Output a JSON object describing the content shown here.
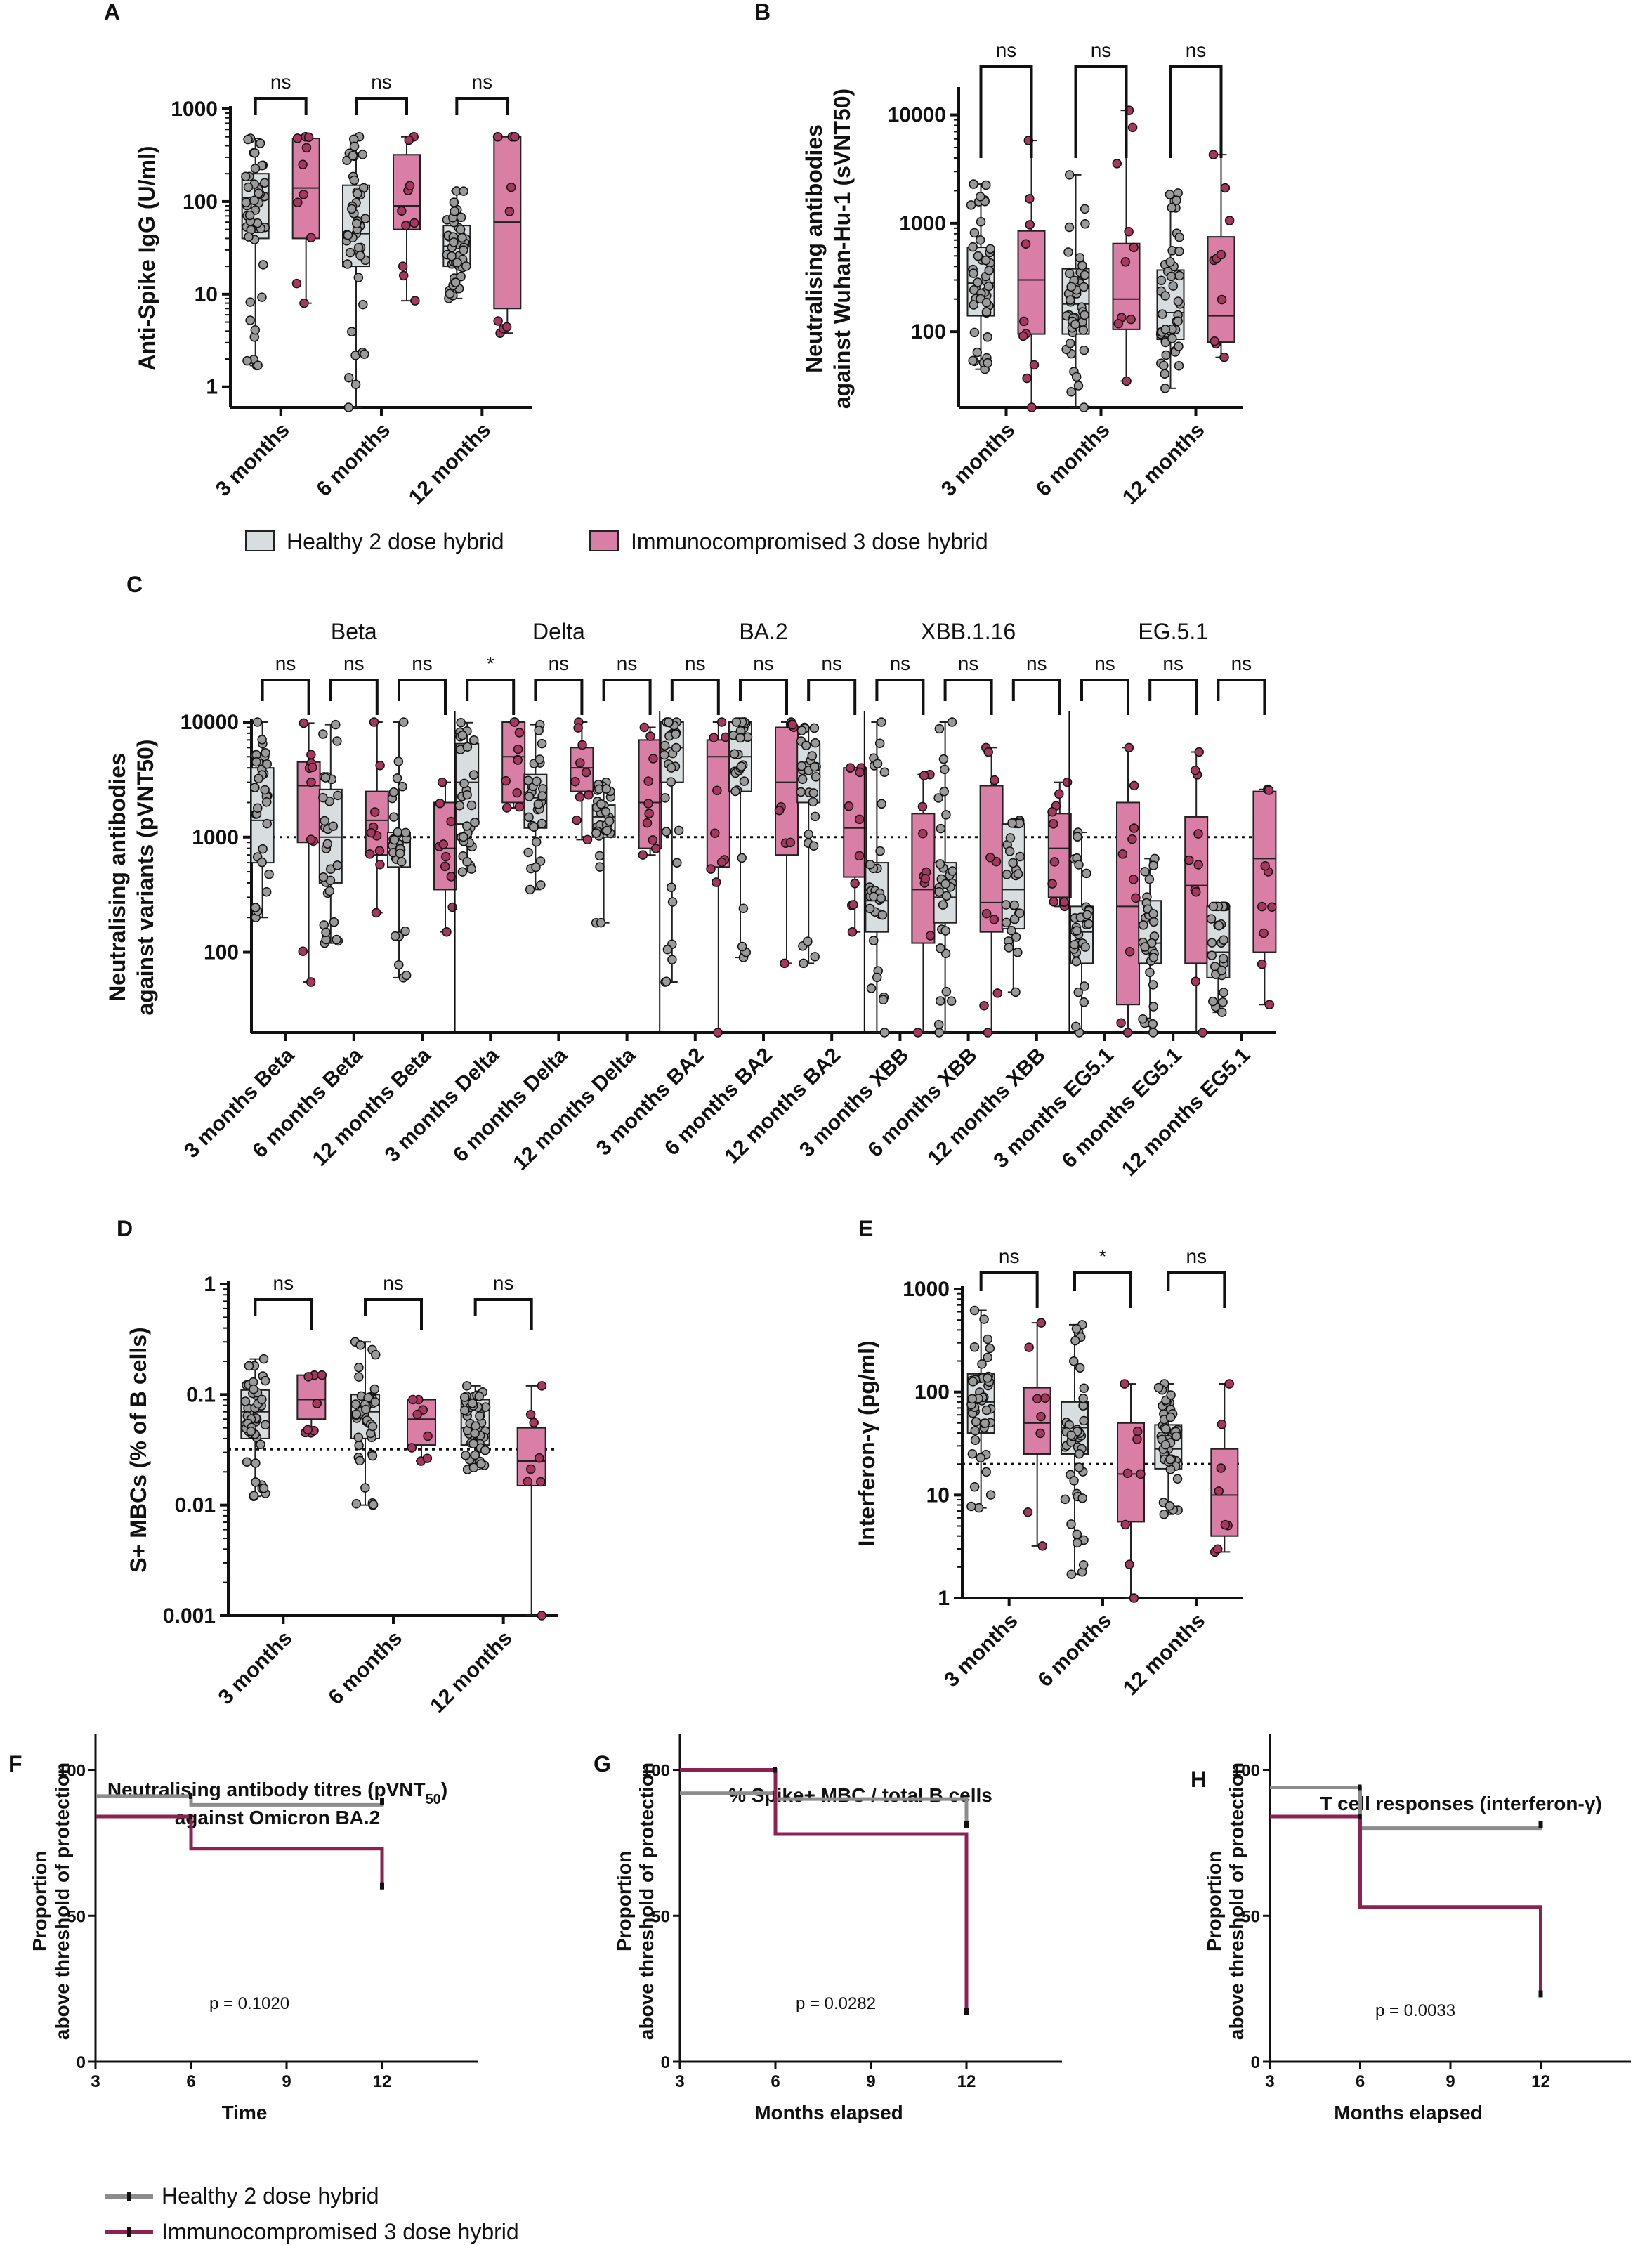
{
  "colors": {
    "healthy": "#d8dde0",
    "immuno": "#d97ea4",
    "healthy_dot": "#9a9a9a",
    "immuno_dot": "#a83760",
    "km_healthy": "#8c8c8c",
    "km_immuno": "#8b2252"
  },
  "legend_top": {
    "healthy": "Healthy 2 dose hybrid",
    "immuno": "Immunocompromised 3 dose hybrid"
  },
  "legend_bottom": {
    "healthy": "Healthy 2 dose hybrid",
    "immuno": "Immunocompromised 3 dose hybrid"
  },
  "chart_data": [
    {
      "panel": "A",
      "type": "box",
      "scale": "log",
      "ylabel": "Anti-Spike IgG (U/ml)",
      "yticks": [
        1,
        10,
        100,
        1000
      ],
      "yticklabels": [
        "1",
        "10",
        "100",
        "1000"
      ],
      "ylim": [
        0.6,
        1000
      ],
      "categories": [
        "3 months",
        "6 months",
        "12 months"
      ],
      "significance": [
        "ns",
        "ns",
        "ns"
      ],
      "series": [
        {
          "name": "Healthy 2 dose hybrid",
          "boxes": [
            {
              "min": 1.7,
              "q1": 40,
              "median": 110,
              "q3": 200,
              "max": 480
            },
            {
              "min": 0.6,
              "q1": 20,
              "median": 45,
              "q3": 150,
              "max": 500
            },
            {
              "min": 9,
              "q1": 20,
              "median": 33,
              "q3": 55,
              "max": 130
            }
          ]
        },
        {
          "name": "Immunocompromised 3 dose hybrid",
          "boxes": [
            {
              "min": 8,
              "q1": 40,
              "median": 140,
              "q3": 480,
              "max": 500
            },
            {
              "min": 8.5,
              "q1": 50,
              "median": 90,
              "q3": 320,
              "max": 500
            },
            {
              "min": 3.8,
              "q1": 7,
              "median": 60,
              "q3": 500,
              "max": 500
            }
          ]
        }
      ]
    },
    {
      "panel": "B",
      "type": "box",
      "scale": "log",
      "ylabel": [
        "Neutralising antibodies",
        "against Wuhan-Hu-1 (sVNT50)"
      ],
      "yticks": [
        100,
        1000,
        10000
      ],
      "yticklabels": [
        "100",
        "1000",
        "10000"
      ],
      "ylim": [
        20,
        17000
      ],
      "categories": [
        "3 months",
        "6 months",
        "12 months"
      ],
      "significance": [
        "ns",
        "ns",
        "ns"
      ],
      "series": [
        {
          "name": "Healthy 2 dose hybrid",
          "boxes": [
            {
              "min": 45,
              "q1": 140,
              "median": 280,
              "q3": 600,
              "max": 2300
            },
            {
              "min": 20,
              "q1": 95,
              "median": 180,
              "q3": 380,
              "max": 2800
            },
            {
              "min": 30,
              "q1": 85,
              "median": 150,
              "q3": 370,
              "max": 1900
            }
          ]
        },
        {
          "name": "Immunocompromised 3 dose hybrid",
          "boxes": [
            {
              "min": 20,
              "q1": 95,
              "median": 300,
              "q3": 850,
              "max": 5800
            },
            {
              "min": 35,
              "q1": 105,
              "median": 200,
              "q3": 650,
              "max": 11000
            },
            {
              "min": 58,
              "q1": 80,
              "median": 140,
              "q3": 750,
              "max": 4300
            }
          ]
        }
      ]
    },
    {
      "panel": "C",
      "type": "box",
      "scale": "log",
      "ylabel": [
        "Neutralising antibodies",
        "against variants (pVNT50)"
      ],
      "yticks": [
        100,
        1000,
        10000
      ],
      "yticklabels": [
        "100",
        "1000",
        "10000"
      ],
      "ylim": [
        20,
        10000
      ],
      "threshold": 1000,
      "variant_groups": [
        "Beta",
        "Delta",
        "BA.2",
        "XBB.1.16",
        "EG.5.1"
      ],
      "categories": [
        "3 months Beta",
        "6 months Beta",
        "12 months Beta",
        "3 months Delta",
        "6 months Delta",
        "12 months Delta",
        "3 months BA2",
        "6 months BA2",
        "12 months BA2",
        "3 months XBB",
        "6 months XBB",
        "12 months XBB",
        "3 months EG5.1",
        "6 months EG5.1",
        "12 months EG5.1"
      ],
      "significance": [
        "ns",
        "ns",
        "ns",
        "*",
        "ns",
        "ns",
        "ns",
        "ns",
        "ns",
        "ns",
        "ns",
        "ns",
        "ns",
        "ns",
        "ns"
      ],
      "series": [
        {
          "name": "Healthy 2 dose hybrid",
          "boxes": [
            {
              "min": 200,
              "q1": 600,
              "median": 1400,
              "q3": 4000,
              "max": 10000
            },
            {
              "min": 120,
              "q1": 400,
              "median": 1000,
              "q3": 2600,
              "max": 9500
            },
            {
              "min": 60,
              "q1": 550,
              "median": 900,
              "q3": 1100,
              "max": 10000
            },
            {
              "min": 500,
              "q1": 1300,
              "median": 3000,
              "q3": 6500,
              "max": 9900
            },
            {
              "min": 350,
              "q1": 1200,
              "median": 2200,
              "q3": 3500,
              "max": 9500
            },
            {
              "min": 180,
              "q1": 1000,
              "median": 1500,
              "q3": 1900,
              "max": 3000
            },
            {
              "min": 55,
              "q1": 3000,
              "median": 6000,
              "q3": 10000,
              "max": 10000
            },
            {
              "min": 90,
              "q1": 2500,
              "median": 5000,
              "q3": 10000,
              "max": 10000
            },
            {
              "min": 80,
              "q1": 2000,
              "median": 4000,
              "q3": 6500,
              "max": 9000
            },
            {
              "min": 20,
              "q1": 150,
              "median": 280,
              "q3": 600,
              "max": 10000
            },
            {
              "min": 20,
              "q1": 180,
              "median": 300,
              "q3": 600,
              "max": 10000
            },
            {
              "min": 45,
              "q1": 160,
              "median": 350,
              "q3": 1300,
              "max": 1400
            },
            {
              "min": 20,
              "q1": 80,
              "median": 150,
              "q3": 250,
              "max": 1100
            },
            {
              "min": 20,
              "q1": 80,
              "median": 120,
              "q3": 280,
              "max": 650
            },
            {
              "min": 30,
              "q1": 60,
              "median": 100,
              "q3": 250,
              "max": 250
            }
          ]
        },
        {
          "name": "Immunocompromised 3 dose hybrid",
          "boxes": [
            {
              "min": 55,
              "q1": 900,
              "median": 2800,
              "q3": 4500,
              "max": 9800
            },
            {
              "min": 220,
              "q1": 700,
              "median": 1400,
              "q3": 2500,
              "max": 10000
            },
            {
              "min": 150,
              "q1": 350,
              "median": 800,
              "q3": 2000,
              "max": 3000
            },
            {
              "min": 1800,
              "q1": 2000,
              "median": 5000,
              "q3": 10000,
              "max": 10000
            },
            {
              "min": 950,
              "q1": 2500,
              "median": 4000,
              "q3": 6000,
              "max": 10000
            },
            {
              "min": 700,
              "q1": 800,
              "median": 2000,
              "q3": 7000,
              "max": 9000
            },
            {
              "min": 20,
              "q1": 550,
              "median": 5000,
              "q3": 7000,
              "max": 10000
            },
            {
              "min": 80,
              "q1": 700,
              "median": 3000,
              "q3": 9000,
              "max": 10000
            },
            {
              "min": 150,
              "q1": 450,
              "median": 1200,
              "q3": 4000,
              "max": 4000
            },
            {
              "min": 20,
              "q1": 120,
              "median": 350,
              "q3": 1600,
              "max": 3500
            },
            {
              "min": 20,
              "q1": 150,
              "median": 270,
              "q3": 2800,
              "max": 6000
            },
            {
              "min": 250,
              "q1": 300,
              "median": 800,
              "q3": 1600,
              "max": 3000
            },
            {
              "min": 20,
              "q1": 35,
              "median": 250,
              "q3": 2000,
              "max": 6000
            },
            {
              "min": 20,
              "q1": 80,
              "median": 380,
              "q3": 1500,
              "max": 5500
            },
            {
              "min": 35,
              "q1": 100,
              "median": 650,
              "q3": 2500,
              "max": 2600
            }
          ]
        }
      ]
    },
    {
      "panel": "D",
      "type": "box",
      "scale": "log",
      "ylabel": "S+ MBCs (% of B cells)",
      "yticks": [
        0.001,
        0.01,
        0.1,
        1
      ],
      "yticklabels": [
        "0.001",
        "0.01",
        "0.1",
        "1"
      ],
      "ylim": [
        0.001,
        1
      ],
      "threshold": 0.032,
      "categories": [
        "3 months",
        "6 months",
        "12 months"
      ],
      "significance": [
        "ns",
        "ns",
        "ns"
      ],
      "series": [
        {
          "name": "Healthy 2 dose hybrid",
          "boxes": [
            {
              "min": 0.012,
              "q1": 0.04,
              "median": 0.07,
              "q3": 0.11,
              "max": 0.21
            },
            {
              "min": 0.01,
              "q1": 0.04,
              "median": 0.07,
              "q3": 0.1,
              "max": 0.3
            },
            {
              "min": 0.021,
              "q1": 0.035,
              "median": 0.05,
              "q3": 0.09,
              "max": 0.12
            }
          ]
        },
        {
          "name": "Immunocompromised 3 dose hybrid",
          "boxes": [
            {
              "min": 0.045,
              "q1": 0.06,
              "median": 0.09,
              "q3": 0.15,
              "max": 0.15
            },
            {
              "min": 0.025,
              "q1": 0.035,
              "median": 0.06,
              "q3": 0.09,
              "max": 0.09
            },
            {
              "min": 0.001,
              "q1": 0.015,
              "median": 0.025,
              "q3": 0.05,
              "max": 0.12
            }
          ]
        }
      ]
    },
    {
      "panel": "E",
      "type": "box",
      "scale": "log",
      "ylabel": "Interferon-γ (pg/ml)",
      "yticks": [
        1,
        10,
        100,
        1000
      ],
      "yticklabels": [
        "1",
        "10",
        "100",
        "1000"
      ],
      "ylim": [
        1,
        1000
      ],
      "threshold": 20,
      "categories": [
        "3 months",
        "6 months",
        "12 months"
      ],
      "significance": [
        "ns",
        "*",
        "ns"
      ],
      "series": [
        {
          "name": "Healthy 2 dose hybrid",
          "boxes": [
            {
              "min": 7.5,
              "q1": 40,
              "median": 80,
              "q3": 150,
              "max": 620
            },
            {
              "min": 1.7,
              "q1": 25,
              "median": 45,
              "q3": 80,
              "max": 450
            },
            {
              "min": 6.5,
              "q1": 18,
              "median": 28,
              "q3": 48,
              "max": 120
            }
          ]
        },
        {
          "name": "Immunocompromised 3 dose hybrid",
          "boxes": [
            {
              "min": 3.2,
              "q1": 25,
              "median": 50,
              "q3": 110,
              "max": 470
            },
            {
              "min": 1,
              "q1": 5.5,
              "median": 16,
              "q3": 50,
              "max": 120
            },
            {
              "min": 2.8,
              "q1": 4,
              "median": 10,
              "q3": 28,
              "max": 120
            }
          ]
        }
      ]
    },
    {
      "panel": "F",
      "type": "line",
      "subtype": "step",
      "title": "Neutralising antibody titres (pVNT50) against Omicron BA.2",
      "title_lines": [
        "Neutralising antibody titres (pVNT",
        "50",
        ")",
        "against Omicron BA.2"
      ],
      "xlabel": "Time",
      "ylabel": [
        "Proportion",
        "above threshold of protection"
      ],
      "xticks": [
        3,
        6,
        9,
        12
      ],
      "yticks": [
        0,
        50,
        100
      ],
      "xlim": [
        3,
        15
      ],
      "ylim": [
        0,
        110
      ],
      "pvalue": "p = 0.1020",
      "series": [
        {
          "name": "Healthy 2 dose hybrid",
          "x": [
            3,
            6,
            12
          ],
          "y": [
            91,
            88,
            88
          ],
          "end": 89
        },
        {
          "name": "Immunocompromised 3 dose hybrid",
          "x": [
            3,
            6,
            12
          ],
          "y": [
            84,
            73,
            73
          ],
          "end": 60
        }
      ]
    },
    {
      "panel": "G",
      "type": "line",
      "subtype": "step",
      "title": "% Spike+ MBC / total B cells",
      "xlabel": "Months elapsed",
      "ylabel": [
        "Proportion",
        "above threshold of protection"
      ],
      "xticks": [
        3,
        6,
        9,
        12
      ],
      "yticks": [
        0,
        50,
        100
      ],
      "xlim": [
        3,
        15
      ],
      "ylim": [
        0,
        110
      ],
      "pvalue": "p = 0.0282",
      "series": [
        {
          "name": "Healthy 2 dose hybrid",
          "x": [
            3,
            6,
            12
          ],
          "y": [
            92,
            90,
            90
          ],
          "end": 81
        },
        {
          "name": "Immunocompromised 3 dose hybrid",
          "x": [
            3,
            6,
            12
          ],
          "y": [
            100,
            78,
            78
          ],
          "end": 17
        }
      ]
    },
    {
      "panel": "H",
      "type": "line",
      "subtype": "step",
      "title": "T cell responses (interferon-γ)",
      "xlabel": "Months elapsed",
      "ylabel": [
        "Proportion",
        "above threshold of protection"
      ],
      "xticks": [
        3,
        6,
        9,
        12
      ],
      "yticks": [
        0,
        50,
        100
      ],
      "xlim": [
        3,
        15
      ],
      "ylim": [
        0,
        110
      ],
      "pvalue": "p = 0.0033",
      "series": [
        {
          "name": "Healthy 2 dose hybrid",
          "x": [
            3,
            6,
            12
          ],
          "y": [
            94,
            80,
            80
          ],
          "end": 81
        },
        {
          "name": "Immunocompromised 3 dose hybrid",
          "x": [
            3,
            6,
            12
          ],
          "y": [
            84,
            53,
            53
          ],
          "end": 23
        }
      ]
    }
  ]
}
